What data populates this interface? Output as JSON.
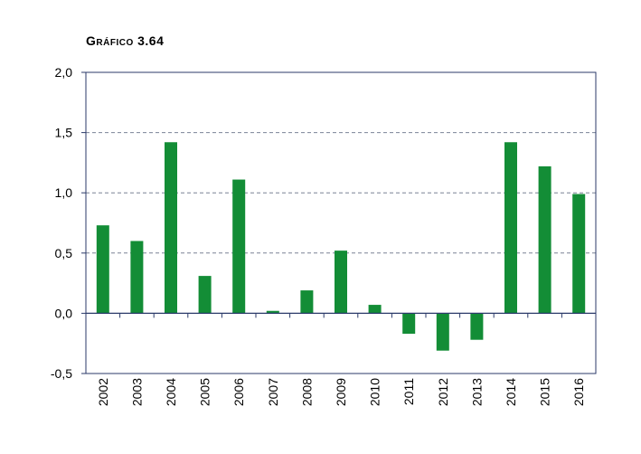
{
  "chart_data": {
    "type": "bar",
    "title": "Gráfico 3.64",
    "xlabel": "",
    "ylabel": "",
    "categories": [
      "2002",
      "2003",
      "2004",
      "2005",
      "2006",
      "2007",
      "2008",
      "2009",
      "2010",
      "2011",
      "2012",
      "2013",
      "2014",
      "2015",
      "2016"
    ],
    "values": [
      0.73,
      0.6,
      1.42,
      0.31,
      1.11,
      0.02,
      0.19,
      0.52,
      0.07,
      -0.17,
      -0.31,
      -0.22,
      1.42,
      1.22,
      0.99
    ],
    "ylim": [
      -0.5,
      2.0
    ],
    "yticks": [
      "-0,5",
      "0,0",
      "0,5",
      "1,0",
      "1,5",
      "2,0"
    ],
    "ytick_values": [
      -0.5,
      0,
      0.5,
      1.0,
      1.5,
      2.0
    ],
    "grid": true,
    "colors": {
      "bar": "#138d36",
      "frame": "#2b3a6a",
      "grid": "#7a8296",
      "zero_line": "#2b3a6a"
    }
  }
}
